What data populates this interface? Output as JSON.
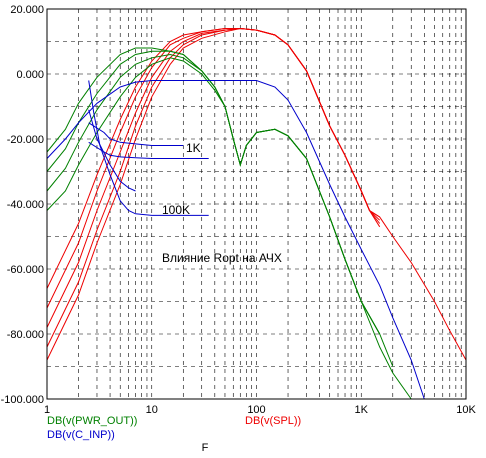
{
  "chart_data": {
    "type": "line",
    "x_scale": "log",
    "xlabel": "F",
    "xlim": [
      1,
      10000
    ],
    "ylim": [
      -100,
      20
    ],
    "x_ticks": [
      {
        "v": 1,
        "label": "1"
      },
      {
        "v": 10,
        "label": "10"
      },
      {
        "v": 100,
        "label": "100"
      },
      {
        "v": 1000,
        "label": "1K"
      },
      {
        "v": 10000,
        "label": "10K"
      }
    ],
    "y_ticks": [
      {
        "v": 20,
        "label": "20.000"
      },
      {
        "v": 0,
        "label": "0.000"
      },
      {
        "v": -20,
        "label": "-20.000"
      },
      {
        "v": -40,
        "label": "-40.000"
      },
      {
        "v": -60,
        "label": "-60.000"
      },
      {
        "v": -80,
        "label": "-80.000"
      },
      {
        "v": -100,
        "label": "-100.000"
      }
    ],
    "grid": true,
    "legend_left_top": "DB(v(PWR_OUT))",
    "legend_left_bottom": "DB(v(C_INP))",
    "legend_right": "DB(v(SPL))",
    "colors": {
      "green": "#008000",
      "blue": "#0000cc",
      "red": "#ee0000"
    },
    "annotation": "Влияние Ropt на АЧХ",
    "label_1k": "1K",
    "label_100k": "100K",
    "series": [
      {
        "color": "red",
        "points": [
          [
            1,
            -88
          ],
          [
            2,
            -68
          ],
          [
            3,
            -52
          ],
          [
            5,
            -34
          ],
          [
            7,
            -20
          ],
          [
            10,
            -7
          ],
          [
            15,
            3
          ],
          [
            20,
            8
          ],
          [
            30,
            11
          ],
          [
            50,
            13
          ],
          [
            70,
            14
          ],
          [
            100,
            13.5
          ],
          [
            150,
            12
          ],
          [
            200,
            9
          ],
          [
            300,
            1
          ],
          [
            500,
            -16
          ],
          [
            700,
            -25
          ],
          [
            1000,
            -36
          ],
          [
            1200,
            -42
          ],
          [
            1500,
            -44
          ],
          [
            2000,
            -50
          ],
          [
            3000,
            -58
          ],
          [
            5000,
            -70
          ],
          [
            7000,
            -79
          ],
          [
            10000,
            -88
          ]
        ]
      },
      {
        "color": "red",
        "points": [
          [
            1,
            -84
          ],
          [
            2,
            -64
          ],
          [
            3,
            -48
          ],
          [
            5,
            -30
          ],
          [
            7,
            -16
          ],
          [
            10,
            -4
          ],
          [
            15,
            5
          ],
          [
            20,
            9
          ],
          [
            30,
            12
          ],
          [
            50,
            13.5
          ],
          [
            70,
            14
          ],
          [
            100,
            13.5
          ],
          [
            150,
            12
          ],
          [
            200,
            9
          ],
          [
            300,
            1
          ],
          [
            500,
            -16
          ],
          [
            700,
            -25
          ],
          [
            1000,
            -36
          ],
          [
            1200,
            -42
          ],
          [
            1500,
            -46
          ]
        ]
      },
      {
        "color": "red",
        "points": [
          [
            1,
            -78
          ],
          [
            2,
            -58
          ],
          [
            3,
            -42
          ],
          [
            5,
            -24
          ],
          [
            7,
            -12
          ],
          [
            10,
            -1
          ],
          [
            15,
            7
          ],
          [
            20,
            10
          ],
          [
            30,
            12.5
          ],
          [
            50,
            13.5
          ],
          [
            70,
            14
          ],
          [
            100,
            13.5
          ],
          [
            150,
            12
          ],
          [
            200,
            9
          ],
          [
            300,
            1
          ],
          [
            500,
            -16
          ],
          [
            700,
            -25
          ],
          [
            1000,
            -36
          ],
          [
            1200,
            -42
          ],
          [
            1500,
            -45
          ]
        ]
      },
      {
        "color": "red",
        "points": [
          [
            1,
            -72
          ],
          [
            2,
            -52
          ],
          [
            3,
            -36
          ],
          [
            5,
            -18
          ],
          [
            7,
            -7
          ],
          [
            10,
            2
          ],
          [
            15,
            9
          ],
          [
            20,
            11
          ],
          [
            30,
            13
          ],
          [
            50,
            14
          ],
          [
            70,
            14
          ],
          [
            100,
            13.5
          ],
          [
            150,
            12
          ],
          [
            200,
            9
          ],
          [
            300,
            1
          ],
          [
            500,
            -16
          ],
          [
            700,
            -25
          ],
          [
            1000,
            -36
          ],
          [
            1200,
            -42
          ],
          [
            1500,
            -44
          ]
        ]
      },
      {
        "color": "red",
        "points": [
          [
            1,
            -66
          ],
          [
            2,
            -46
          ],
          [
            3,
            -31
          ],
          [
            5,
            -14
          ],
          [
            7,
            -4
          ],
          [
            10,
            4
          ],
          [
            15,
            10
          ],
          [
            20,
            12
          ],
          [
            30,
            13
          ],
          [
            50,
            14
          ],
          [
            70,
            14
          ],
          [
            100,
            13.5
          ],
          [
            150,
            12
          ],
          [
            200,
            9
          ],
          [
            300,
            1
          ],
          [
            500,
            -16
          ],
          [
            700,
            -25
          ],
          [
            1000,
            -36
          ],
          [
            1200,
            -42
          ],
          [
            1500,
            -47
          ]
        ]
      },
      {
        "color": "green",
        "points": [
          [
            1,
            -42
          ],
          [
            1.5,
            -36
          ],
          [
            2,
            -28
          ],
          [
            3,
            -18
          ],
          [
            5,
            -7
          ],
          [
            7,
            -1
          ],
          [
            10,
            3
          ],
          [
            15,
            5
          ],
          [
            20,
            4
          ],
          [
            30,
            0
          ],
          [
            40,
            -5
          ],
          [
            50,
            -10
          ],
          [
            60,
            -20
          ],
          [
            70,
            -28
          ],
          [
            80,
            -22
          ],
          [
            100,
            -18
          ],
          [
            150,
            -17
          ],
          [
            200,
            -19
          ],
          [
            300,
            -26
          ],
          [
            500,
            -44
          ],
          [
            700,
            -57
          ],
          [
            1000,
            -70
          ],
          [
            1500,
            -84
          ],
          [
            2000,
            -92
          ],
          [
            3000,
            -100
          ]
        ]
      },
      {
        "color": "green",
        "points": [
          [
            1,
            -36
          ],
          [
            1.5,
            -29
          ],
          [
            2,
            -21
          ],
          [
            3,
            -11
          ],
          [
            5,
            -1
          ],
          [
            7,
            3
          ],
          [
            10,
            5
          ],
          [
            15,
            6
          ],
          [
            20,
            5
          ],
          [
            30,
            1
          ],
          [
            40,
            -4
          ],
          [
            50,
            -10
          ],
          [
            60,
            -20
          ],
          [
            70,
            -28
          ],
          [
            80,
            -22
          ],
          [
            100,
            -18
          ],
          [
            150,
            -17
          ],
          [
            200,
            -19
          ],
          [
            300,
            -26
          ],
          [
            500,
            -44
          ],
          [
            700,
            -57
          ],
          [
            1000,
            -70
          ],
          [
            1500,
            -80
          ],
          [
            2000,
            -90
          ]
        ]
      },
      {
        "color": "green",
        "points": [
          [
            1,
            -30
          ],
          [
            1.5,
            -23
          ],
          [
            2,
            -15
          ],
          [
            3,
            -6
          ],
          [
            5,
            3
          ],
          [
            7,
            6
          ],
          [
            10,
            7
          ],
          [
            15,
            7
          ],
          [
            20,
            6
          ],
          [
            30,
            1
          ],
          [
            40,
            -4
          ],
          [
            50,
            -10
          ],
          [
            60,
            -20
          ],
          [
            70,
            -28
          ],
          [
            80,
            -22
          ],
          [
            100,
            -18
          ],
          [
            150,
            -17
          ],
          [
            200,
            -19
          ],
          [
            300,
            -26
          ],
          [
            500,
            -44
          ],
          [
            700,
            -57
          ],
          [
            1000,
            -70
          ],
          [
            1500,
            -80
          ]
        ]
      },
      {
        "color": "green",
        "points": [
          [
            1,
            -24
          ],
          [
            1.5,
            -17
          ],
          [
            2,
            -9
          ],
          [
            3,
            -1
          ],
          [
            5,
            6
          ],
          [
            7,
            8
          ],
          [
            10,
            8
          ],
          [
            15,
            7
          ],
          [
            20,
            6
          ],
          [
            30,
            1
          ],
          [
            40,
            -4
          ],
          [
            50,
            -10
          ],
          [
            60,
            -20
          ],
          [
            70,
            -28
          ],
          [
            80,
            -22
          ],
          [
            100,
            -18
          ],
          [
            150,
            -17
          ],
          [
            200,
            -19
          ],
          [
            300,
            -26
          ],
          [
            500,
            -44
          ],
          [
            700,
            -57
          ],
          [
            1000,
            -70
          ],
          [
            1500,
            -80
          ]
        ]
      },
      {
        "color": "blue",
        "points": [
          [
            1,
            -26
          ],
          [
            1.5,
            -20
          ],
          [
            2,
            -15
          ],
          [
            3,
            -9
          ],
          [
            5,
            -4
          ],
          [
            7,
            -2.5
          ],
          [
            10,
            -2
          ],
          [
            20,
            -2
          ],
          [
            50,
            -2
          ],
          [
            100,
            -2
          ],
          [
            150,
            -4
          ],
          [
            200,
            -8
          ],
          [
            300,
            -18
          ],
          [
            500,
            -34
          ],
          [
            700,
            -44
          ],
          [
            1000,
            -54
          ],
          [
            1500,
            -65
          ],
          [
            2000,
            -75
          ],
          [
            3000,
            -88
          ],
          [
            4000,
            -100
          ]
        ]
      },
      {
        "color": "blue",
        "points": [
          [
            2.5,
            -21
          ],
          [
            3.5,
            -24
          ],
          [
            4,
            -25
          ],
          [
            5,
            -25.5
          ],
          [
            7,
            -25.8
          ],
          [
            10,
            -26
          ],
          [
            20,
            -26
          ],
          [
            35,
            -26
          ]
        ]
      },
      {
        "color": "blue",
        "points": [
          [
            2.5,
            -15
          ],
          [
            3.5,
            -18
          ],
          [
            4,
            -20
          ],
          [
            5,
            -21
          ],
          [
            7,
            -21.5
          ],
          [
            10,
            -22
          ],
          [
            20,
            -22
          ]
        ]
      },
      {
        "color": "blue",
        "points": [
          [
            2.5,
            -2
          ],
          [
            2.8,
            -12
          ],
          [
            3.2,
            -22
          ],
          [
            4,
            -31
          ],
          [
            5,
            -39
          ],
          [
            6,
            -42
          ],
          [
            7,
            -43
          ],
          [
            10,
            -43.5
          ],
          [
            20,
            -43.5
          ],
          [
            35,
            -43.5
          ]
        ]
      },
      {
        "color": "blue",
        "points": [
          [
            2.5,
            -11
          ],
          [
            3,
            -20
          ],
          [
            4,
            -28
          ],
          [
            5,
            -33
          ],
          [
            6,
            -35
          ],
          [
            7,
            -36
          ]
        ]
      }
    ]
  }
}
